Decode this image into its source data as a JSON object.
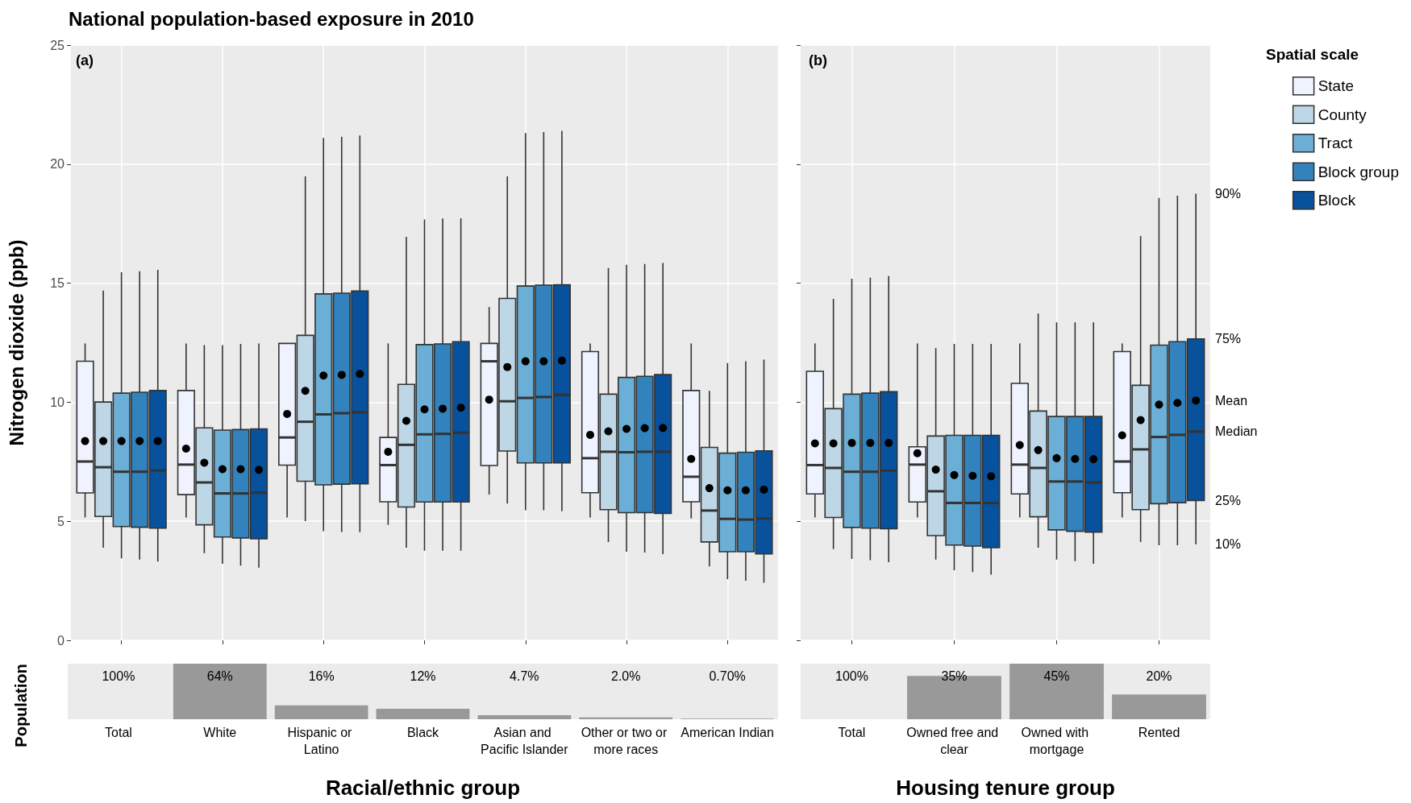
{
  "chart_data": [
    {
      "type": "box",
      "title": "National population-based exposure in 2010",
      "ylabel": "Nitrogen dioxide (ppb)",
      "annotations": [
        "(a)"
      ],
      "categories": [
        "Total",
        "White",
        "Hispanic or Latino",
        "Black",
        "Asian and Pacific Islander",
        "Other or two or more races",
        "American Indian"
      ],
      "ylim": [
        0,
        25
      ],
      "yticks": [
        0,
        5,
        10,
        15,
        20,
        25
      ],
      "grid": true,
      "tick_labels": "y",
      "series": [
        {
          "color": "#eff3ff",
          "boxes": [
            {
              "low": 5.16,
              "q1": 6.19,
              "median": 7.51,
              "q3": 11.72,
              "high": 12.47,
              "mean": 8.37
            },
            {
              "low": 5.16,
              "q1": 6.12,
              "median": 7.38,
              "q3": 10.49,
              "high": 12.47,
              "mean": 8.05
            },
            {
              "low": 5.16,
              "q1": 7.36,
              "median": 8.52,
              "q3": 12.47,
              "high": 12.47,
              "mean": 9.51
            },
            {
              "low": 4.85,
              "q1": 5.82,
              "median": 7.36,
              "q3": 8.52,
              "high": 12.47,
              "mean": 7.92
            },
            {
              "low": 6.12,
              "q1": 7.34,
              "median": 11.72,
              "q3": 12.47,
              "high": 14.0,
              "mean": 10.11
            },
            {
              "low": 5.16,
              "q1": 6.2,
              "median": 7.65,
              "q3": 12.13,
              "high": 12.47,
              "mean": 8.63
            },
            {
              "low": 5.12,
              "q1": 5.82,
              "median": 6.87,
              "q3": 10.49,
              "high": 12.47,
              "mean": 7.62
            }
          ]
        },
        {
          "color": "#bdd7e7",
          "boxes": [
            {
              "low": 3.89,
              "q1": 5.2,
              "median": 7.27,
              "q3": 10.01,
              "high": 14.69,
              "mean": 8.37
            },
            {
              "low": 3.66,
              "q1": 4.85,
              "median": 6.63,
              "q3": 8.92,
              "high": 12.4,
              "mean": 7.46
            },
            {
              "low": 5.01,
              "q1": 6.68,
              "median": 9.18,
              "q3": 12.81,
              "high": 19.49,
              "mean": 10.48
            },
            {
              "low": 3.89,
              "q1": 5.6,
              "median": 8.21,
              "q3": 10.75,
              "high": 16.95,
              "mean": 9.22
            },
            {
              "low": 5.74,
              "q1": 7.95,
              "median": 10.04,
              "q3": 14.36,
              "high": 19.49,
              "mean": 11.48
            },
            {
              "low": 4.13,
              "q1": 5.49,
              "median": 7.92,
              "q3": 10.34,
              "high": 15.64,
              "mean": 8.78
            },
            {
              "low": 3.1,
              "q1": 4.13,
              "median": 5.45,
              "q3": 8.1,
              "high": 10.48,
              "mean": 6.39
            }
          ]
        },
        {
          "color": "#6baed6",
          "boxes": [
            {
              "low": 3.44,
              "q1": 4.78,
              "median": 7.08,
              "q3": 10.38,
              "high": 15.46,
              "mean": 8.37
            },
            {
              "low": 3.21,
              "q1": 4.34,
              "median": 6.17,
              "q3": 8.83,
              "high": 12.4,
              "mean": 7.19
            },
            {
              "low": 4.58,
              "q1": 6.53,
              "median": 9.49,
              "q3": 14.55,
              "high": 21.1,
              "mean": 11.12
            },
            {
              "low": 3.76,
              "q1": 5.81,
              "median": 8.65,
              "q3": 12.42,
              "high": 17.68,
              "mean": 9.7
            },
            {
              "low": 5.46,
              "q1": 7.45,
              "median": 10.18,
              "q3": 14.88,
              "high": 21.3,
              "mean": 11.72
            },
            {
              "low": 3.72,
              "q1": 5.36,
              "median": 7.9,
              "q3": 11.04,
              "high": 15.77,
              "mean": 8.88
            },
            {
              "low": 2.57,
              "q1": 3.72,
              "median": 5.1,
              "q3": 7.86,
              "high": 11.65,
              "mean": 6.3
            }
          ]
        },
        {
          "color": "#3182bd",
          "boxes": [
            {
              "low": 3.39,
              "q1": 4.75,
              "median": 7.08,
              "q3": 10.42,
              "high": 15.5,
              "mean": 8.37
            },
            {
              "low": 3.14,
              "q1": 4.3,
              "median": 6.17,
              "q3": 8.85,
              "high": 12.45,
              "mean": 7.19
            },
            {
              "low": 4.55,
              "q1": 6.56,
              "median": 9.54,
              "q3": 14.58,
              "high": 21.15,
              "mean": 11.15
            },
            {
              "low": 3.76,
              "q1": 5.81,
              "median": 8.67,
              "q3": 12.45,
              "high": 17.72,
              "mean": 9.73
            },
            {
              "low": 5.46,
              "q1": 7.45,
              "median": 10.22,
              "q3": 14.92,
              "high": 21.35,
              "mean": 11.72
            },
            {
              "low": 3.69,
              "q1": 5.36,
              "median": 7.92,
              "q3": 11.09,
              "high": 15.81,
              "mean": 8.91
            },
            {
              "low": 2.5,
              "q1": 3.72,
              "median": 5.07,
              "q3": 7.9,
              "high": 11.72,
              "mean": 6.3
            }
          ]
        },
        {
          "color": "#08519c",
          "boxes": [
            {
              "low": 3.31,
              "q1": 4.71,
              "median": 7.13,
              "q3": 10.49,
              "high": 15.56,
              "mean": 8.37
            },
            {
              "low": 3.05,
              "q1": 4.26,
              "median": 6.2,
              "q3": 8.88,
              "high": 12.47,
              "mean": 7.16
            },
            {
              "low": 4.54,
              "q1": 6.57,
              "median": 9.58,
              "q3": 14.67,
              "high": 21.2,
              "mean": 11.19
            },
            {
              "low": 3.76,
              "q1": 5.81,
              "median": 8.72,
              "q3": 12.54,
              "high": 17.73,
              "mean": 9.77
            },
            {
              "low": 5.42,
              "q1": 7.45,
              "median": 10.31,
              "q3": 14.93,
              "high": 21.4,
              "mean": 11.75
            },
            {
              "low": 3.62,
              "q1": 5.33,
              "median": 7.92,
              "q3": 11.16,
              "high": 15.85,
              "mean": 8.92
            },
            {
              "low": 2.42,
              "q1": 3.63,
              "median": 5.12,
              "q3": 7.96,
              "high": 11.79,
              "mean": 6.33
            }
          ]
        }
      ]
    },
    {
      "type": "box",
      "annotations": [
        "(b)",
        "90%",
        "75%",
        "Mean",
        "Median",
        "25%",
        "10%"
      ],
      "categories": [
        "Total",
        "Owned free and clear",
        "Owned with mortgage",
        "Rented"
      ],
      "ylim": [
        0,
        25
      ],
      "yticks": [
        0,
        5,
        10,
        15,
        20,
        25
      ],
      "grid": true,
      "tick_labels": false,
      "legend": "right",
      "legend_title": "Spatial scale",
      "series": [
        {
          "name": "State",
          "color": "#eff3ff",
          "boxes": [
            {
              "low": 5.16,
              "q1": 6.15,
              "median": 7.36,
              "q3": 11.3,
              "high": 12.47,
              "mean": 8.27
            },
            {
              "low": 5.16,
              "q1": 5.81,
              "median": 7.38,
              "q3": 8.13,
              "high": 12.47,
              "mean": 7.86
            },
            {
              "low": 5.16,
              "q1": 6.15,
              "median": 7.38,
              "q3": 10.79,
              "high": 12.47,
              "mean": 8.2
            },
            {
              "low": 5.16,
              "q1": 6.2,
              "median": 7.51,
              "q3": 12.13,
              "high": 12.47,
              "mean": 8.61
            }
          ]
        },
        {
          "name": "County",
          "color": "#bdd7e7",
          "boxes": [
            {
              "low": 3.83,
              "q1": 5.16,
              "median": 7.24,
              "q3": 9.73,
              "high": 14.34,
              "mean": 8.27
            },
            {
              "low": 3.39,
              "q1": 4.4,
              "median": 6.26,
              "q3": 8.58,
              "high": 12.27,
              "mean": 7.17
            },
            {
              "low": 3.89,
              "q1": 5.19,
              "median": 7.24,
              "q3": 9.63,
              "high": 13.73,
              "mean": 7.99
            },
            {
              "low": 4.13,
              "q1": 5.49,
              "median": 8.02,
              "q3": 10.71,
              "high": 16.98,
              "mean": 9.25
            }
          ]
        },
        {
          "name": "Tract",
          "color": "#6baed6",
          "boxes": [
            {
              "low": 3.42,
              "q1": 4.74,
              "median": 7.08,
              "q3": 10.34,
              "high": 15.19,
              "mean": 8.29
            },
            {
              "low": 2.94,
              "q1": 4.0,
              "median": 5.77,
              "q3": 8.61,
              "high": 12.45,
              "mean": 6.94
            },
            {
              "low": 3.39,
              "q1": 4.64,
              "median": 6.67,
              "q3": 9.4,
              "high": 13.35,
              "mean": 7.65
            },
            {
              "low": 3.99,
              "q1": 5.74,
              "median": 8.54,
              "q3": 12.4,
              "high": 18.58,
              "mean": 9.9
            }
          ]
        },
        {
          "name": "Block group",
          "color": "#3182bd",
          "boxes": [
            {
              "low": 3.37,
              "q1": 4.71,
              "median": 7.08,
              "q3": 10.38,
              "high": 15.23,
              "mean": 8.29
            },
            {
              "low": 2.87,
              "q1": 3.96,
              "median": 5.77,
              "q3": 8.61,
              "high": 12.45,
              "mean": 6.91
            },
            {
              "low": 3.32,
              "q1": 4.58,
              "median": 6.67,
              "q3": 9.4,
              "high": 13.35,
              "mean": 7.62
            },
            {
              "low": 3.99,
              "q1": 5.78,
              "median": 8.63,
              "q3": 12.54,
              "high": 18.67,
              "mean": 9.97
            }
          ]
        },
        {
          "name": "Block",
          "color": "#08519c",
          "boxes": [
            {
              "low": 3.28,
              "q1": 4.69,
              "median": 7.12,
              "q3": 10.44,
              "high": 15.3,
              "mean": 8.29
            },
            {
              "low": 2.76,
              "q1": 3.89,
              "median": 5.77,
              "q3": 8.61,
              "high": 12.45,
              "mean": 6.89
            },
            {
              "low": 3.21,
              "q1": 4.54,
              "median": 6.63,
              "q3": 9.4,
              "high": 13.35,
              "mean": 7.61
            },
            {
              "low": 4.03,
              "q1": 5.87,
              "median": 8.77,
              "q3": 12.66,
              "high": 18.76,
              "mean": 10.07
            }
          ]
        }
      ]
    },
    {
      "type": "bar",
      "ylim": [
        0,
        64
      ],
      "tick_labels": "x",
      "xlabel": "Racial/ethnic group",
      "ylabel": "Population",
      "categories": [
        "Total",
        "White",
        "Hispanic or Latino",
        "Black",
        "Asian and Pacific Islander",
        "Other or two or more races",
        "American Indian"
      ],
      "values": [
        null,
        64,
        16,
        12,
        4.7,
        2.0,
        0.7
      ],
      "value_labels": [
        "100%",
        "64%",
        "16%",
        "12%",
        "4.7%",
        "2.0%",
        "0.70%"
      ],
      "color": "#999999"
    },
    {
      "type": "bar",
      "ylim": [
        0,
        45
      ],
      "tick_labels": "x",
      "xlabel": "Housing tenure group",
      "categories": [
        "Total",
        "Owned free and clear",
        "Owned with mortgage",
        "Rented"
      ],
      "values": [
        null,
        35,
        45,
        20
      ],
      "value_labels": [
        "100%",
        "35%",
        "45%",
        "20%"
      ],
      "color": "#999999"
    }
  ]
}
